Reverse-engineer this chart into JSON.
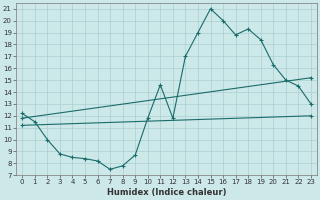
{
  "xlabel": "Humidex (Indice chaleur)",
  "bg_color": "#cde8e8",
  "grid_color": "#aacfcf",
  "line_color": "#1a6b6b",
  "xlim": [
    -0.5,
    23.5
  ],
  "ylim": [
    7,
    21.5
  ],
  "yticks": [
    7,
    8,
    9,
    10,
    11,
    12,
    13,
    14,
    15,
    16,
    17,
    18,
    19,
    20,
    21
  ],
  "xticks": [
    0,
    1,
    2,
    3,
    4,
    5,
    6,
    7,
    8,
    9,
    10,
    11,
    12,
    13,
    14,
    15,
    16,
    17,
    18,
    19,
    20,
    21,
    22,
    23
  ],
  "line1_x": [
    0,
    1,
    2,
    3,
    4,
    5,
    6,
    7,
    8,
    9,
    10,
    11,
    12,
    13,
    14,
    15,
    16,
    17,
    18,
    19,
    20,
    21,
    22,
    23
  ],
  "line1_y": [
    12.2,
    11.5,
    10.0,
    8.8,
    8.5,
    8.4,
    8.2,
    7.5,
    7.8,
    8.7,
    11.8,
    14.6,
    11.8,
    17.0,
    19.0,
    21.0,
    20.0,
    18.8,
    19.3,
    18.4,
    16.3,
    15.0,
    14.5,
    13.0
  ],
  "line2_x": [
    0,
    23
  ],
  "line2_y": [
    11.8,
    15.2
  ],
  "line3_x": [
    0,
    23
  ],
  "line3_y": [
    11.2,
    12.0
  ],
  "tick_fontsize": 5,
  "xlabel_fontsize": 6
}
